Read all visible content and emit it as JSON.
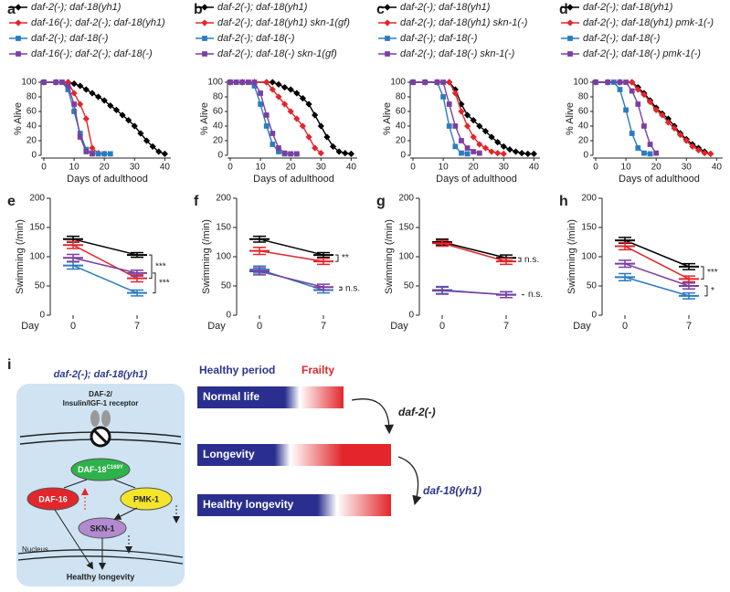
{
  "chart_data": [
    {
      "type": "line",
      "label": "a",
      "ylabel": "% Alive",
      "xlabel": "Days of adulthood",
      "xlim": [
        0,
        42
      ],
      "ylim": [
        0,
        100
      ],
      "xticks": [
        0,
        10,
        20,
        30,
        40
      ],
      "yticks": [
        0,
        20,
        40,
        60,
        80,
        100
      ],
      "series": [
        {
          "name": "daf-2(-); daf-18(yh1)",
          "color": "#000000",
          "marker": "diamond",
          "x": [
            0,
            4,
            8,
            10,
            12,
            14,
            16,
            18,
            20,
            22,
            24,
            26,
            28,
            30,
            32,
            34,
            36,
            38,
            40
          ],
          "values": [
            100,
            100,
            100,
            98,
            95,
            90,
            85,
            80,
            75,
            68,
            62,
            55,
            48,
            40,
            30,
            20,
            12,
            5,
            2
          ]
        },
        {
          "name": "daf-16(-); daf-2(-); daf-18(yh1)",
          "color": "#e3262b",
          "marker": "diamond",
          "x": [
            0,
            4,
            8,
            10,
            12,
            14,
            16,
            18,
            20
          ],
          "values": [
            100,
            100,
            100,
            85,
            70,
            50,
            10,
            3,
            2
          ]
        },
        {
          "name": "daf-2(-); daf-18(-)",
          "color": "#2b7bbf",
          "marker": "square",
          "x": [
            0,
            4,
            6,
            8,
            10,
            12,
            14,
            16,
            18,
            20,
            22
          ],
          "values": [
            100,
            100,
            100,
            90,
            60,
            30,
            8,
            3,
            2,
            2,
            2
          ]
        },
        {
          "name": "daf-16(-); daf-2(-); daf-18(-)",
          "color": "#7b3fa0",
          "marker": "square",
          "x": [
            0,
            4,
            6,
            8,
            10,
            12,
            14,
            16
          ],
          "values": [
            100,
            100,
            100,
            95,
            70,
            25,
            5,
            2
          ]
        }
      ]
    },
    {
      "type": "line",
      "label": "b",
      "ylabel": "% Alive",
      "xlabel": "Days of adulthood",
      "xlim": [
        0,
        42
      ],
      "ylim": [
        0,
        100
      ],
      "xticks": [
        0,
        10,
        20,
        30,
        40
      ],
      "yticks": [
        0,
        20,
        40,
        60,
        80,
        100
      ],
      "series": [
        {
          "name": "daf-2(-); daf-18(yh1)",
          "color": "#000000",
          "marker": "diamond",
          "x": [
            0,
            4,
            8,
            12,
            14,
            16,
            18,
            20,
            22,
            24,
            26,
            28,
            30,
            32,
            34,
            36,
            38,
            40
          ],
          "values": [
            100,
            100,
            100,
            100,
            100,
            97,
            93,
            90,
            85,
            78,
            70,
            55,
            40,
            25,
            12,
            5,
            3,
            2
          ]
        },
        {
          "name": "daf-2(-); daf-18(yh1) skn-1(gf)",
          "color": "#e3262b",
          "marker": "diamond",
          "x": [
            0,
            4,
            8,
            12,
            14,
            16,
            18,
            20,
            22,
            24,
            26,
            28,
            30
          ],
          "values": [
            100,
            100,
            100,
            100,
            90,
            80,
            70,
            60,
            50,
            40,
            25,
            10,
            3
          ]
        },
        {
          "name": "daf-2(-); daf-18(-)",
          "color": "#2b7bbf",
          "marker": "square",
          "x": [
            0,
            2,
            4,
            6,
            8,
            10,
            12,
            14,
            16,
            18,
            20,
            22
          ],
          "values": [
            100,
            100,
            100,
            100,
            95,
            70,
            40,
            15,
            5,
            2,
            2,
            2
          ]
        },
        {
          "name": "daf-2(-); daf-18(-) skn-1(gf)",
          "color": "#7b3fa0",
          "marker": "square",
          "x": [
            0,
            2,
            4,
            6,
            8,
            10,
            12,
            14,
            16,
            18,
            20,
            22
          ],
          "values": [
            100,
            100,
            100,
            100,
            100,
            85,
            55,
            30,
            10,
            3,
            2,
            2
          ]
        }
      ]
    },
    {
      "type": "line",
      "label": "c",
      "ylabel": "% Alive",
      "xlabel": "Days of adulthood",
      "xlim": [
        0,
        42
      ],
      "ylim": [
        0,
        100
      ],
      "xticks": [
        0,
        10,
        20,
        30,
        40
      ],
      "yticks": [
        0,
        20,
        40,
        60,
        80,
        100
      ],
      "series": [
        {
          "name": "daf-2(-); daf-18(yh1)",
          "color": "#000000",
          "marker": "diamond",
          "x": [
            0,
            4,
            8,
            12,
            14,
            16,
            18,
            20,
            22,
            24,
            26,
            28,
            30,
            32,
            34,
            36,
            38,
            40
          ],
          "values": [
            100,
            100,
            100,
            100,
            90,
            70,
            55,
            48,
            40,
            33,
            25,
            18,
            12,
            8,
            5,
            3,
            2,
            2
          ]
        },
        {
          "name": "daf-2(-); daf-18(yh1) skn-1(-)",
          "color": "#e3262b",
          "marker": "diamond",
          "x": [
            0,
            4,
            8,
            12,
            14,
            16,
            18,
            20,
            22,
            24,
            26,
            28,
            30
          ],
          "values": [
            100,
            100,
            100,
            100,
            85,
            60,
            40,
            25,
            15,
            10,
            5,
            3,
            2
          ]
        },
        {
          "name": "daf-2(-); daf-18(-)",
          "color": "#2b7bbf",
          "marker": "square",
          "x": [
            0,
            4,
            8,
            10,
            12,
            14,
            16,
            18
          ],
          "values": [
            100,
            100,
            100,
            80,
            40,
            12,
            3,
            2
          ]
        },
        {
          "name": "daf-2(-); daf-18(-) skn-1(-)",
          "color": "#7b3fa0",
          "marker": "square",
          "x": [
            0,
            4,
            8,
            10,
            12,
            14,
            16,
            18,
            20,
            22
          ],
          "values": [
            100,
            100,
            100,
            100,
            70,
            40,
            20,
            10,
            5,
            3
          ]
        }
      ]
    },
    {
      "type": "line",
      "label": "d",
      "ylabel": "% Alive",
      "xlabel": "Days of adulthood",
      "xlim": [
        0,
        42
      ],
      "ylim": [
        0,
        100
      ],
      "xticks": [
        0,
        10,
        20,
        30,
        40
      ],
      "yticks": [
        0,
        20,
        40,
        60,
        80,
        100
      ],
      "series": [
        {
          "name": "daf-2(-); daf-18(yh1)",
          "color": "#000000",
          "marker": "diamond",
          "x": [
            0,
            4,
            8,
            12,
            14,
            16,
            18,
            20,
            22,
            24,
            26,
            28,
            30,
            32,
            34,
            36,
            38
          ],
          "values": [
            100,
            100,
            100,
            100,
            93,
            85,
            75,
            65,
            57,
            50,
            40,
            30,
            22,
            15,
            10,
            5,
            2
          ]
        },
        {
          "name": "daf-2(-); daf-18(yh1) pmk-1(-)",
          "color": "#e3262b",
          "marker": "diamond",
          "x": [
            0,
            4,
            8,
            12,
            14,
            16,
            18,
            20,
            22,
            24,
            26,
            28,
            30,
            32,
            34,
            36,
            38
          ],
          "values": [
            100,
            100,
            100,
            100,
            90,
            83,
            73,
            62,
            55,
            45,
            37,
            28,
            20,
            12,
            7,
            3,
            2
          ]
        },
        {
          "name": "daf-2(-); daf-18(-)",
          "color": "#2b7bbf",
          "marker": "square",
          "x": [
            0,
            4,
            6,
            8,
            10,
            12,
            14,
            16,
            18
          ],
          "values": [
            100,
            100,
            100,
            90,
            62,
            30,
            10,
            3,
            2
          ]
        },
        {
          "name": "daf-2(-); daf-18(-) pmk-1(-)",
          "color": "#7b3fa0",
          "marker": "square",
          "x": [
            0,
            4,
            8,
            10,
            12,
            14,
            16,
            18,
            20
          ],
          "values": [
            100,
            100,
            100,
            100,
            88,
            70,
            40,
            15,
            3
          ]
        }
      ]
    },
    {
      "type": "errorbar",
      "label": "e",
      "ylabel": "Swimming (/min)",
      "xlabel": "Day",
      "categories": [
        "0",
        "7"
      ],
      "ylim": [
        0,
        200
      ],
      "yticks": [
        0,
        50,
        100,
        150,
        200
      ],
      "series": [
        {
          "color": "#000000",
          "values": [
            130,
            103
          ],
          "errors": [
            5,
            4
          ]
        },
        {
          "color": "#e3262b",
          "values": [
            120,
            63
          ],
          "errors": [
            6,
            6
          ]
        },
        {
          "color": "#2b7bbf",
          "values": [
            85,
            38
          ],
          "errors": [
            6,
            5
          ]
        },
        {
          "color": "#7b3fa0",
          "values": [
            98,
            72
          ],
          "errors": [
            6,
            5
          ]
        }
      ],
      "annotations": [
        "***",
        "***"
      ]
    },
    {
      "type": "errorbar",
      "label": "f",
      "ylabel": "Swimming (/min)",
      "xlabel": "Day",
      "categories": [
        "0",
        "7"
      ],
      "ylim": [
        0,
        200
      ],
      "yticks": [
        0,
        50,
        100,
        150,
        200
      ],
      "series": [
        {
          "color": "#000000",
          "values": [
            130,
            103
          ],
          "errors": [
            5,
            4
          ]
        },
        {
          "color": "#e3262b",
          "values": [
            110,
            92
          ],
          "errors": [
            6,
            5
          ]
        },
        {
          "color": "#2b7bbf",
          "values": [
            78,
            43
          ],
          "errors": [
            6,
            5
          ]
        },
        {
          "color": "#7b3fa0",
          "values": [
            75,
            48
          ],
          "errors": [
            6,
            5
          ]
        }
      ],
      "annotations": [
        "**",
        "n.s."
      ]
    },
    {
      "type": "errorbar",
      "label": "g",
      "ylabel": "Swimming (/min)",
      "xlabel": "Day",
      "categories": [
        "0",
        "7"
      ],
      "ylim": [
        0,
        200
      ],
      "yticks": [
        0,
        50,
        100,
        150,
        200
      ],
      "series": [
        {
          "color": "#000000",
          "values": [
            125,
            98
          ],
          "errors": [
            5,
            5
          ]
        },
        {
          "color": "#e3262b",
          "values": [
            123,
            92
          ],
          "errors": [
            5,
            5
          ]
        },
        {
          "color": "#2b7bbf",
          "values": [
            43,
            35
          ],
          "errors": [
            6,
            5
          ]
        },
        {
          "color": "#7b3fa0",
          "values": [
            42,
            35
          ],
          "errors": [
            6,
            5
          ]
        }
      ],
      "annotations": [
        "n.s.",
        "n.s."
      ]
    },
    {
      "type": "errorbar",
      "label": "h",
      "ylabel": "Swimming (/min)",
      "xlabel": "Day",
      "categories": [
        "0",
        "7"
      ],
      "ylim": [
        0,
        200
      ],
      "yticks": [
        0,
        50,
        100,
        150,
        200
      ],
      "series": [
        {
          "color": "#000000",
          "values": [
            128,
            83
          ],
          "errors": [
            5,
            5
          ]
        },
        {
          "color": "#e3262b",
          "values": [
            118,
            62
          ],
          "errors": [
            6,
            5
          ]
        },
        {
          "color": "#2b7bbf",
          "values": [
            65,
            33
          ],
          "errors": [
            6,
            5
          ]
        },
        {
          "color": "#7b3fa0",
          "values": [
            88,
            50
          ],
          "errors": [
            6,
            5
          ]
        }
      ],
      "annotations": [
        "***",
        "*"
      ]
    }
  ],
  "diagram": {
    "label": "i",
    "title": "daf-2(-); daf-18(yh1)",
    "receptor": [
      "DAF-2/",
      "Insulin/IGF-1 receptor"
    ],
    "daf18": {
      "main": "DAF-18",
      "sup": "C169Y"
    },
    "daf16": "DAF-16",
    "pmk1": "PMK-1",
    "skn1": "SKN-1",
    "nucleus": "Nucleus",
    "outcome": "Healthy longevity",
    "legend": [
      "Healthy period",
      "Frailty"
    ],
    "bars": [
      "Normal life",
      "Longevity",
      "Healthy longevity"
    ],
    "arrows": [
      "daf-2(-)",
      "daf-18(yh1)"
    ]
  }
}
